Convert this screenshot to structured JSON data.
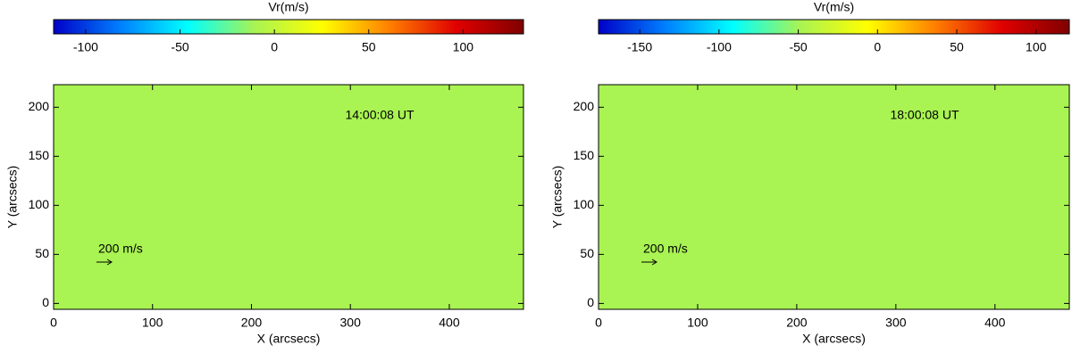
{
  "chart_data": [
    {
      "type": "vector-map",
      "colorbar": {
        "label": "Vr(m/s)",
        "lim": [
          -117,
          132
        ],
        "ticks": [
          -100,
          -50,
          0,
          50,
          100
        ],
        "colors": [
          "#0000c8",
          "#0080ff",
          "#00ffff",
          "#a9f352",
          "#ffff00",
          "#ff8000",
          "#e00000",
          "#800000"
        ]
      },
      "background": "#a9f352",
      "xlabel": "X (arcsecs)",
      "ylabel": "Y (arcsecs)",
      "xlim": [
        0,
        475
      ],
      "xticks": [
        0,
        100,
        200,
        300,
        400
      ],
      "ylim": [
        -6,
        223
      ],
      "yticks": [
        0,
        50,
        100,
        150,
        200
      ],
      "annotations": [
        "14:00:08 UT",
        "200 m/s"
      ]
    },
    {
      "type": "vector-map",
      "colorbar": {
        "label": "Vr(m/s)",
        "lim": [
          -176,
          121
        ],
        "ticks": [
          -150,
          -100,
          -50,
          0,
          50,
          100
        ],
        "colors": [
          "#0000c8",
          "#0080ff",
          "#00ffff",
          "#a9f352",
          "#ffff00",
          "#ff8000",
          "#e00000",
          "#800000"
        ]
      },
      "background": "#a9f352",
      "xlabel": "X (arcsecs)",
      "ylabel": "Y (arcsecs)",
      "xlim": [
        0,
        475
      ],
      "xticks": [
        0,
        100,
        200,
        300,
        400
      ],
      "ylim": [
        -6,
        223
      ],
      "yticks": [
        0,
        50,
        100,
        150,
        200
      ],
      "annotations": [
        "18:00:08 UT",
        "200 m/s"
      ]
    }
  ]
}
